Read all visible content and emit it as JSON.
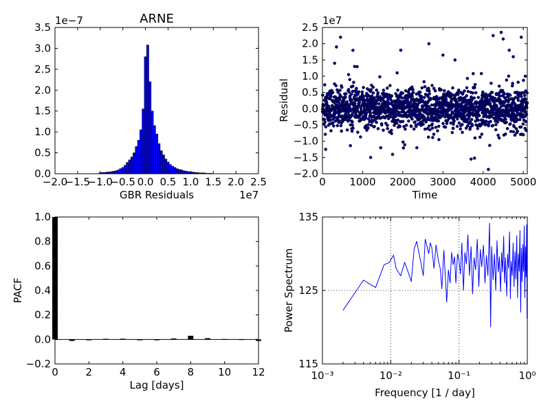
{
  "figure": {
    "background": "#ffffff",
    "accent": "#0000ff",
    "dark_marker": "#000080"
  },
  "chart_data": [
    {
      "id": "hist",
      "type": "bar",
      "title": "ARNE",
      "xlabel": "GBR Residuals",
      "ylabel": "",
      "x_offset_label": "1e7",
      "y_offset_label": "1e−7",
      "xlim": [
        -2.0,
        2.5
      ],
      "ylim": [
        0.0,
        3.5
      ],
      "xticks": [
        -2.0,
        -1.5,
        -1.0,
        -0.5,
        0.0,
        0.5,
        1.0,
        1.5,
        2.0,
        2.5
      ],
      "xtick_labels": [
        "−2.0",
        "−1.5",
        "−1.0",
        "−0.5",
        "0.0",
        "0.5",
        "1.0",
        "1.5",
        "2.0",
        "2.5"
      ],
      "yticks": [
        0.0,
        0.5,
        1.0,
        1.5,
        2.0,
        2.5,
        3.0,
        3.5
      ],
      "ytick_labels": [
        "0.0",
        "0.5",
        "1.0",
        "1.5",
        "2.0",
        "2.5",
        "3.0",
        "3.5"
      ],
      "bin_width": 0.05,
      "bins": [
        {
          "x": -1.0,
          "y": 0.02
        },
        {
          "x": -0.95,
          "y": 0.03
        },
        {
          "x": -0.9,
          "y": 0.03
        },
        {
          "x": -0.85,
          "y": 0.04
        },
        {
          "x": -0.8,
          "y": 0.04
        },
        {
          "x": -0.75,
          "y": 0.05
        },
        {
          "x": -0.7,
          "y": 0.06
        },
        {
          "x": -0.65,
          "y": 0.07
        },
        {
          "x": -0.6,
          "y": 0.09
        },
        {
          "x": -0.55,
          "y": 0.12
        },
        {
          "x": -0.5,
          "y": 0.15
        },
        {
          "x": -0.45,
          "y": 0.2
        },
        {
          "x": -0.4,
          "y": 0.27
        },
        {
          "x": -0.35,
          "y": 0.33
        },
        {
          "x": -0.3,
          "y": 0.4
        },
        {
          "x": -0.25,
          "y": 0.5
        },
        {
          "x": -0.2,
          "y": 0.65
        },
        {
          "x": -0.15,
          "y": 0.8
        },
        {
          "x": -0.1,
          "y": 1.05
        },
        {
          "x": -0.05,
          "y": 1.55
        },
        {
          "x": 0.0,
          "y": 2.8
        },
        {
          "x": 0.05,
          "y": 3.08
        },
        {
          "x": 0.1,
          "y": 2.2
        },
        {
          "x": 0.15,
          "y": 1.5
        },
        {
          "x": 0.2,
          "y": 1.15
        },
        {
          "x": 0.25,
          "y": 0.95
        },
        {
          "x": 0.3,
          "y": 0.72
        },
        {
          "x": 0.35,
          "y": 0.55
        },
        {
          "x": 0.4,
          "y": 0.45
        },
        {
          "x": 0.45,
          "y": 0.35
        },
        {
          "x": 0.5,
          "y": 0.28
        },
        {
          "x": 0.55,
          "y": 0.22
        },
        {
          "x": 0.6,
          "y": 0.18
        },
        {
          "x": 0.65,
          "y": 0.15
        },
        {
          "x": 0.7,
          "y": 0.12
        },
        {
          "x": 0.75,
          "y": 0.1
        },
        {
          "x": 0.8,
          "y": 0.09
        },
        {
          "x": 0.85,
          "y": 0.07
        },
        {
          "x": 0.9,
          "y": 0.06
        },
        {
          "x": 0.95,
          "y": 0.05
        },
        {
          "x": 1.0,
          "y": 0.04
        },
        {
          "x": 1.05,
          "y": 0.04
        },
        {
          "x": 1.1,
          "y": 0.03
        },
        {
          "x": 1.15,
          "y": 0.03
        },
        {
          "x": 1.2,
          "y": 0.02
        },
        {
          "x": 1.25,
          "y": 0.02
        },
        {
          "x": 1.3,
          "y": 0.02
        },
        {
          "x": 1.35,
          "y": 0.01
        },
        {
          "x": 1.4,
          "y": 0.01
        },
        {
          "x": 1.45,
          "y": 0.01
        }
      ],
      "bar_color": "#0000ff"
    },
    {
      "id": "resid",
      "type": "scatter",
      "title": "",
      "xlabel": "Time",
      "ylabel": "Residual",
      "y_offset_label": "1e7",
      "xlim": [
        0,
        5100
      ],
      "ylim": [
        -2.0,
        2.5
      ],
      "xticks": [
        0,
        1000,
        2000,
        3000,
        4000,
        5000
      ],
      "xtick_labels": [
        "0",
        "1000",
        "2000",
        "3000",
        "4000",
        "5000"
      ],
      "yticks": [
        -2.0,
        -1.5,
        -1.0,
        -0.5,
        0.0,
        0.5,
        1.0,
        1.5,
        2.0,
        2.5
      ],
      "ytick_labels": [
        "−2.0",
        "−1.5",
        "−1.0",
        "−0.5",
        "0.0",
        "0.5",
        "1.0",
        "1.5",
        "2.0",
        "2.5"
      ],
      "n_points": 5100,
      "core_spread": 0.3,
      "notable_points": [
        {
          "x": 350,
          "y": 1.9
        },
        {
          "x": 450,
          "y": 2.2
        },
        {
          "x": 650,
          "y": 1.05
        },
        {
          "x": 800,
          "y": 1.3
        },
        {
          "x": 1200,
          "y": -1.5
        },
        {
          "x": 1450,
          "y": -1.2
        },
        {
          "x": 1950,
          "y": 1.8
        },
        {
          "x": 2350,
          "y": -1.2
        },
        {
          "x": 2650,
          "y": 2.0
        },
        {
          "x": 3000,
          "y": 1.65
        },
        {
          "x": 3300,
          "y": 1.5
        },
        {
          "x": 3700,
          "y": -1.55
        },
        {
          "x": 4250,
          "y": 2.25
        },
        {
          "x": 4450,
          "y": 2.35
        },
        {
          "x": 4650,
          "y": 1.8
        },
        {
          "x": 4750,
          "y": 1.6
        },
        {
          "x": 4950,
          "y": 2.2
        },
        {
          "x": 5050,
          "y": 1.0
        },
        {
          "x": 80,
          "y": -1.25
        },
        {
          "x": 2900,
          "y": -0.95
        },
        {
          "x": 4400,
          "y": -0.9
        }
      ],
      "point_color": "#000080"
    },
    {
      "id": "pacf",
      "type": "bar",
      "title": "",
      "xlabel": "Lag [days]",
      "ylabel": "PACF",
      "xlim": [
        0,
        12
      ],
      "ylim": [
        -0.2,
        1.0
      ],
      "xticks": [
        0,
        2,
        4,
        6,
        8,
        10,
        12
      ],
      "xtick_labels": [
        "0",
        "2",
        "4",
        "6",
        "8",
        "10",
        "12"
      ],
      "yticks": [
        -0.2,
        0.0,
        0.2,
        0.4,
        0.6,
        0.8,
        1.0
      ],
      "ytick_labels": [
        "−0.2",
        "0.0",
        "0.2",
        "0.4",
        "0.6",
        "0.8",
        "1.0"
      ],
      "lags": [
        0,
        1,
        2,
        3,
        4,
        5,
        6,
        7,
        8,
        9,
        10,
        11,
        12
      ],
      "values": [
        1.0,
        -0.012,
        -0.003,
        0.005,
        0.006,
        -0.003,
        0.0,
        0.008,
        0.03,
        0.01,
        0.003,
        0.002,
        -0.012
      ],
      "bar_color": "#000000"
    },
    {
      "id": "psd",
      "type": "line",
      "title": "",
      "xlabel": "Frequency [1 / day]",
      "ylabel": "Power Spectrum",
      "xscale": "log",
      "xlim": [
        0.001,
        1.0
      ],
      "ylim": [
        115,
        135
      ],
      "xtick_labels": [
        "10⁻³",
        "10⁻²",
        "10⁻¹",
        "10⁰"
      ],
      "yticks": [
        115,
        125,
        135
      ],
      "ytick_labels": [
        "115",
        "125",
        "135"
      ],
      "grid": true,
      "points": [
        {
          "x": 0.002,
          "y": 122.3
        },
        {
          "x": 0.004,
          "y": 126.4
        },
        {
          "x": 0.006,
          "y": 125.4
        },
        {
          "x": 0.008,
          "y": 128.5
        },
        {
          "x": 0.0095,
          "y": 128.8
        },
        {
          "x": 0.011,
          "y": 129.8
        },
        {
          "x": 0.012,
          "y": 128.0
        },
        {
          "x": 0.014,
          "y": 127.0
        },
        {
          "x": 0.016,
          "y": 128.8
        },
        {
          "x": 0.018,
          "y": 127.5
        },
        {
          "x": 0.02,
          "y": 126.2
        },
        {
          "x": 0.022,
          "y": 130.6
        },
        {
          "x": 0.024,
          "y": 131.7
        },
        {
          "x": 0.026,
          "y": 130.0
        },
        {
          "x": 0.028,
          "y": 128.5
        },
        {
          "x": 0.03,
          "y": 127.0
        },
        {
          "x": 0.032,
          "y": 132.0
        },
        {
          "x": 0.034,
          "y": 131.0
        },
        {
          "x": 0.036,
          "y": 130.0
        },
        {
          "x": 0.038,
          "y": 131.5
        },
        {
          "x": 0.04,
          "y": 130.8
        },
        {
          "x": 0.043,
          "y": 128.0
        },
        {
          "x": 0.046,
          "y": 131.2
        },
        {
          "x": 0.05,
          "y": 129.0
        },
        {
          "x": 0.053,
          "y": 128.0
        },
        {
          "x": 0.056,
          "y": 125.2
        },
        {
          "x": 0.06,
          "y": 130.5
        },
        {
          "x": 0.063,
          "y": 127.0
        },
        {
          "x": 0.066,
          "y": 123.4
        },
        {
          "x": 0.07,
          "y": 127.8
        },
        {
          "x": 0.074,
          "y": 126.0
        },
        {
          "x": 0.078,
          "y": 130.2
        },
        {
          "x": 0.082,
          "y": 128.5
        },
        {
          "x": 0.086,
          "y": 129.6
        },
        {
          "x": 0.09,
          "y": 126.0
        },
        {
          "x": 0.095,
          "y": 130.0
        },
        {
          "x": 0.1,
          "y": 129.0
        },
        {
          "x": 0.105,
          "y": 127.2
        },
        {
          "x": 0.11,
          "y": 131.5
        },
        {
          "x": 0.116,
          "y": 125.0
        },
        {
          "x": 0.122,
          "y": 130.2
        },
        {
          "x": 0.128,
          "y": 128.6
        },
        {
          "x": 0.135,
          "y": 132.6
        },
        {
          "x": 0.142,
          "y": 127.0
        },
        {
          "x": 0.15,
          "y": 131.0
        },
        {
          "x": 0.158,
          "y": 124.5
        },
        {
          "x": 0.166,
          "y": 129.5
        },
        {
          "x": 0.175,
          "y": 127.8
        },
        {
          "x": 0.185,
          "y": 132.0
        },
        {
          "x": 0.195,
          "y": 125.5
        },
        {
          "x": 0.205,
          "y": 130.6
        },
        {
          "x": 0.215,
          "y": 128.2
        },
        {
          "x": 0.228,
          "y": 131.2
        },
        {
          "x": 0.24,
          "y": 126.0
        },
        {
          "x": 0.252,
          "y": 129.8
        },
        {
          "x": 0.265,
          "y": 127.0
        },
        {
          "x": 0.28,
          "y": 134.2
        },
        {
          "x": 0.29,
          "y": 120.0
        },
        {
          "x": 0.3,
          "y": 131.0
        },
        {
          "x": 0.315,
          "y": 126.4
        },
        {
          "x": 0.33,
          "y": 130.0
        },
        {
          "x": 0.345,
          "y": 125.0
        },
        {
          "x": 0.36,
          "y": 131.8
        },
        {
          "x": 0.375,
          "y": 127.5
        },
        {
          "x": 0.39,
          "y": 129.6
        },
        {
          "x": 0.405,
          "y": 124.8
        },
        {
          "x": 0.42,
          "y": 130.2
        },
        {
          "x": 0.435,
          "y": 127.5
        },
        {
          "x": 0.45,
          "y": 132.4
        },
        {
          "x": 0.465,
          "y": 126.0
        },
        {
          "x": 0.48,
          "y": 129.5
        },
        {
          "x": 0.5,
          "y": 124.2
        },
        {
          "x": 0.515,
          "y": 130.0
        },
        {
          "x": 0.53,
          "y": 128.0
        },
        {
          "x": 0.55,
          "y": 133.0
        },
        {
          "x": 0.565,
          "y": 123.8
        },
        {
          "x": 0.58,
          "y": 129.0
        },
        {
          "x": 0.6,
          "y": 127.0
        },
        {
          "x": 0.62,
          "y": 131.5
        },
        {
          "x": 0.64,
          "y": 125.5
        },
        {
          "x": 0.66,
          "y": 130.3
        },
        {
          "x": 0.68,
          "y": 126.5
        },
        {
          "x": 0.7,
          "y": 132.5
        },
        {
          "x": 0.72,
          "y": 124.0
        },
        {
          "x": 0.74,
          "y": 130.0
        },
        {
          "x": 0.76,
          "y": 127.6
        },
        {
          "x": 0.78,
          "y": 133.2
        },
        {
          "x": 0.8,
          "y": 122.0
        },
        {
          "x": 0.82,
          "y": 130.8
        },
        {
          "x": 0.84,
          "y": 126.2
        },
        {
          "x": 0.86,
          "y": 131.3
        },
        {
          "x": 0.88,
          "y": 127.6
        },
        {
          "x": 0.9,
          "y": 133.8
        },
        {
          "x": 0.92,
          "y": 124.0
        },
        {
          "x": 0.94,
          "y": 131.0
        },
        {
          "x": 0.96,
          "y": 126.8
        },
        {
          "x": 0.98,
          "y": 134.0
        },
        {
          "x": 0.99,
          "y": 121.2
        },
        {
          "x": 1.0,
          "y": 129.0
        }
      ],
      "line_color": "#0000ff"
    }
  ]
}
